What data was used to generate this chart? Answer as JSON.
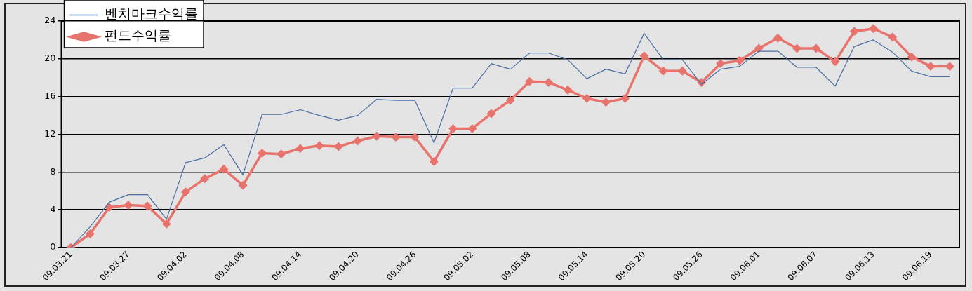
{
  "chart_data": {
    "type": "line",
    "categories": [
      "09.03.21",
      null,
      null,
      "09.03.27",
      null,
      null,
      "09.04.02",
      null,
      null,
      "09.04.08",
      null,
      null,
      "09.04.14",
      null,
      null,
      "09.04.20",
      null,
      null,
      "09.04.26",
      null,
      null,
      "09.05.02",
      null,
      null,
      "09.05.08",
      null,
      null,
      "09.05.14",
      null,
      null,
      "09.05.20",
      null,
      null,
      "09.05.26",
      null,
      null,
      "09.06.01",
      null,
      null,
      "09.06.07",
      null,
      null,
      "09.06.13",
      null,
      null,
      "09.06.19",
      null
    ],
    "series": [
      {
        "name": "벤치마크수익률",
        "color": "#4a6fa5",
        "marker": "none",
        "values": [
          0,
          2.2,
          4.8,
          5.6,
          5.6,
          3.0,
          9.0,
          9.5,
          10.9,
          7.7,
          14.1,
          14.1,
          14.6,
          14.0,
          13.5,
          14.0,
          15.7,
          15.6,
          15.6,
          11.1,
          16.9,
          16.9,
          19.5,
          18.9,
          20.6,
          20.6,
          19.9,
          17.9,
          18.9,
          18.4,
          22.7,
          19.9,
          19.9,
          17.3,
          18.9,
          19.2,
          20.8,
          20.8,
          19.1,
          19.1,
          17.1,
          21.3,
          22.0,
          20.7,
          18.7,
          18.1,
          18.1
        ]
      },
      {
        "name": "펀드수익률",
        "color": "#e8736c",
        "marker": "diamond",
        "values": [
          0,
          1.45,
          4.25,
          4.5,
          4.4,
          2.5,
          5.9,
          7.3,
          8.3,
          6.6,
          10.0,
          9.9,
          10.5,
          10.8,
          10.7,
          11.3,
          11.8,
          11.7,
          11.7,
          9.1,
          12.6,
          12.6,
          14.2,
          15.6,
          17.6,
          17.5,
          16.7,
          15.8,
          15.4,
          15.8,
          20.3,
          18.7,
          18.7,
          17.5,
          19.5,
          19.8,
          21.1,
          22.2,
          21.1,
          21.1,
          19.7,
          22.9,
          23.2,
          22.3,
          20.2,
          19.2,
          19.2
        ]
      }
    ],
    "ylim": [
      0,
      24
    ],
    "yticks": [
      0,
      4,
      8,
      12,
      16,
      20,
      24
    ],
    "grid": "y",
    "legend": "top left"
  }
}
